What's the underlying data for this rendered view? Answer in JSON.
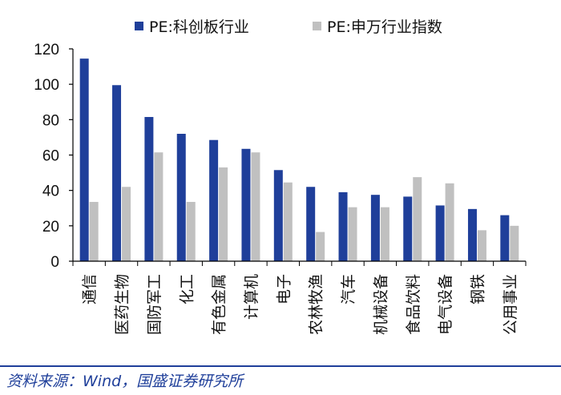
{
  "chart_data": {
    "type": "bar",
    "categories": [
      "通信",
      "医药生物",
      "国防军工",
      "化工",
      "有色金属",
      "计算机",
      "电子",
      "农林牧渔",
      "汽车",
      "机械设备",
      "食品饮料",
      "电气设备",
      "钢铁",
      "公用事业"
    ],
    "series": [
      {
        "name": "PE:科创板行业",
        "color": "#1f3f9a",
        "values": [
          114.5,
          99.5,
          81.5,
          72,
          68.5,
          63.5,
          51.5,
          42,
          39,
          37.5,
          36.5,
          31.5,
          29.5,
          26
        ]
      },
      {
        "name": "PE:申万行业指数",
        "color": "#c0c0c0",
        "values": [
          33.5,
          42,
          61.5,
          33.5,
          53,
          61.5,
          44.5,
          16.5,
          30.5,
          30.5,
          47.5,
          44,
          17.5,
          20
        ]
      }
    ],
    "ylim": [
      0,
      120
    ],
    "yticks": [
      0,
      20,
      40,
      60,
      80,
      100,
      120
    ],
    "legend_position": "top",
    "grid": false
  },
  "source": "资料来源：Wind，国盛证券研究所"
}
